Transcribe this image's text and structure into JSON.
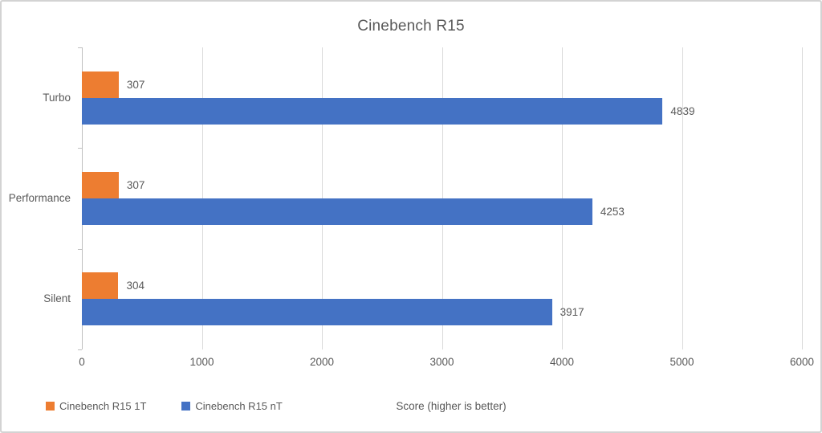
{
  "title": "Cinebench R15",
  "chart_data": {
    "type": "bar",
    "orientation": "horizontal",
    "title": "Cinebench R15",
    "categories": [
      "Turbo",
      "Performance",
      "Silent"
    ],
    "series": [
      {
        "name": "Cinebench R15 1T",
        "color": "#ED7D31",
        "values": [
          307,
          307,
          304
        ]
      },
      {
        "name": "Cinebench R15 nT",
        "color": "#4472C4",
        "values": [
          4839,
          4253,
          3917
        ]
      }
    ],
    "xlabel": "Score (higher is better)",
    "ylabel": "",
    "xlim": [
      0,
      6000
    ],
    "xticks": [
      0,
      1000,
      2000,
      3000,
      4000,
      5000,
      6000
    ],
    "grid": true,
    "data_labels": true,
    "legend_position": "bottom-left"
  },
  "colors": {
    "series_1t": "#ED7D31",
    "series_nt": "#4472C4",
    "text": "#595959",
    "gridline": "#D9D9D9",
    "axis_line": "#BFBFBF",
    "frame_border": "#D3D3D3",
    "background": "#FFFFFF"
  },
  "legend": {
    "items": [
      {
        "label": "Cinebench R15 1T",
        "color": "#ED7D31"
      },
      {
        "label": "Cinebench R15 nT",
        "color": "#4472C4"
      }
    ]
  }
}
